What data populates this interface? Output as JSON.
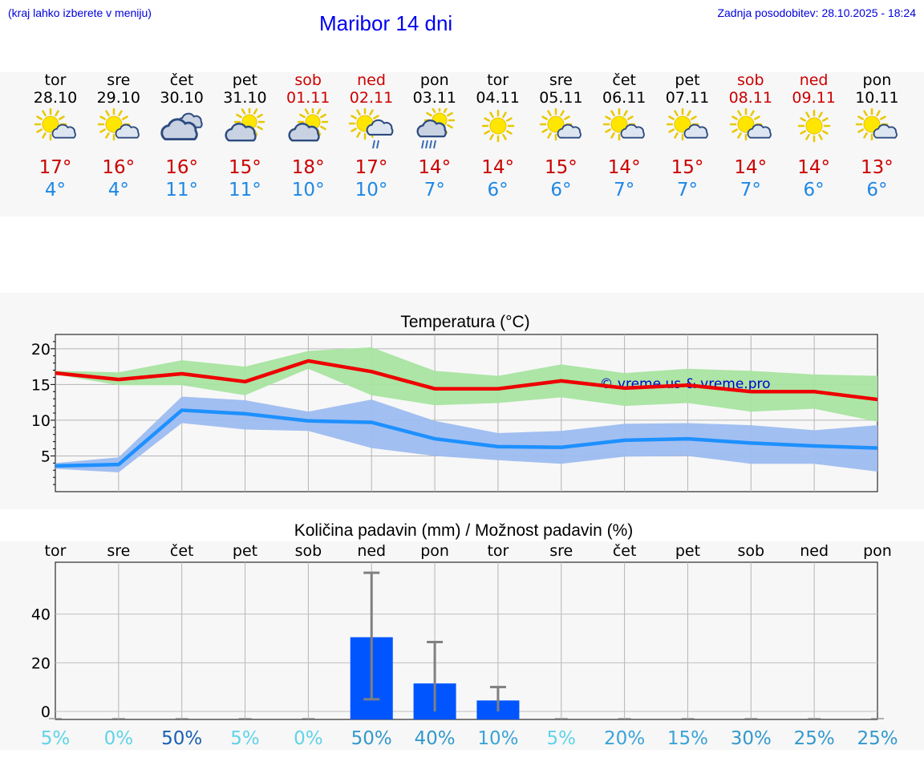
{
  "header": {
    "hint": "(kraj lahko izberete v meniju)",
    "title": "Maribor 14 dni",
    "updated": "Zadnja posodobitev: 28.10.2025 - 18:24"
  },
  "days": [
    {
      "name": "tor",
      "date": "28.10",
      "weekend": false,
      "icon": "sun-cloud-icon",
      "max": "17°",
      "min": "4°"
    },
    {
      "name": "sre",
      "date": "29.10",
      "weekend": false,
      "icon": "sun-cloud-icon",
      "max": "16°",
      "min": "4°"
    },
    {
      "name": "čet",
      "date": "30.10",
      "weekend": false,
      "icon": "cloudy-icon",
      "max": "16°",
      "min": "11°"
    },
    {
      "name": "pet",
      "date": "31.10",
      "weekend": false,
      "icon": "cloud-sun-icon",
      "max": "15°",
      "min": "11°"
    },
    {
      "name": "sob",
      "date": "01.11",
      "weekend": true,
      "icon": "cloud-sun-icon",
      "max": "18°",
      "min": "10°"
    },
    {
      "name": "ned",
      "date": "02.11",
      "weekend": true,
      "icon": "sun-rain-icon",
      "max": "17°",
      "min": "10°"
    },
    {
      "name": "pon",
      "date": "03.11",
      "weekend": false,
      "icon": "cloud-sun-rain-icon",
      "max": "14°",
      "min": "7°"
    },
    {
      "name": "tor",
      "date": "04.11",
      "weekend": false,
      "icon": "sun-icon",
      "max": "14°",
      "min": "6°"
    },
    {
      "name": "sre",
      "date": "05.11",
      "weekend": false,
      "icon": "sun-cloud-icon",
      "max": "15°",
      "min": "6°"
    },
    {
      "name": "čet",
      "date": "06.11",
      "weekend": false,
      "icon": "sun-cloud-icon",
      "max": "14°",
      "min": "7°"
    },
    {
      "name": "pet",
      "date": "07.11",
      "weekend": false,
      "icon": "sun-cloud-icon",
      "max": "15°",
      "min": "7°"
    },
    {
      "name": "sob",
      "date": "08.11",
      "weekend": true,
      "icon": "sun-cloud-icon",
      "max": "14°",
      "min": "7°"
    },
    {
      "name": "ned",
      "date": "09.11",
      "weekend": true,
      "icon": "sun-icon",
      "max": "14°",
      "min": "6°"
    },
    {
      "name": "pon",
      "date": "10.11",
      "weekend": false,
      "icon": "sun-cloud-icon",
      "max": "13°",
      "min": "6°"
    }
  ],
  "colors": {
    "max_line": "#ee0000",
    "max_band": "#a8e4a0",
    "min_line": "#1e90ff",
    "min_band": "#9dbcf0",
    "bar": "#0055ff",
    "whisker": "#808080",
    "watermark": "#0000cc"
  },
  "chart_data": [
    {
      "type": "line",
      "title": "Temperatura (°C)",
      "watermark": "© vreme.us & vreme.pro",
      "categories": [
        "tor",
        "sre",
        "čet",
        "pet",
        "sob",
        "ned",
        "pon",
        "tor",
        "sre",
        "čet",
        "pet",
        "sob",
        "ned",
        "pon"
      ],
      "ylim": [
        0,
        22
      ],
      "yticks": [
        5,
        10,
        15,
        20
      ],
      "grid": true,
      "series": [
        {
          "values": [
            16.6,
            15.7,
            16.5,
            15.4,
            18.3,
            16.8,
            14.4,
            14.4,
            15.5,
            14.5,
            14.9,
            14.0,
            14.0,
            12.9
          ],
          "band_low": [
            16.4,
            14.9,
            14.9,
            13.5,
            17.2,
            13.5,
            12.1,
            12.4,
            13.2,
            12.0,
            12.4,
            11.2,
            11.6,
            9.8
          ],
          "band_high": [
            16.9,
            16.7,
            18.4,
            17.5,
            19.7,
            20.2,
            16.9,
            16.2,
            17.8,
            16.6,
            17.2,
            16.9,
            16.4,
            16.2
          ]
        },
        {
          "values": [
            3.6,
            3.8,
            11.4,
            10.9,
            9.9,
            9.7,
            7.4,
            6.3,
            6.2,
            7.2,
            7.4,
            6.8,
            6.4,
            6.1
          ],
          "band_low": [
            3.2,
            2.7,
            9.6,
            8.7,
            8.5,
            6.1,
            5.0,
            4.4,
            3.9,
            4.9,
            5.0,
            3.9,
            3.9,
            2.8
          ],
          "band_high": [
            4.0,
            4.8,
            13.3,
            12.8,
            11.2,
            12.9,
            9.9,
            8.2,
            8.5,
            9.5,
            9.6,
            9.3,
            8.6,
            9.3
          ]
        }
      ]
    },
    {
      "type": "bar",
      "title": "Količina padavin (mm) / Možnost padavin (%)",
      "categories": [
        "tor",
        "sre",
        "čet",
        "pet",
        "sob",
        "ned",
        "pon",
        "tor",
        "sre",
        "čet",
        "pet",
        "sob",
        "ned",
        "pon"
      ],
      "values": [
        0,
        0,
        0,
        0,
        0,
        30.5,
        11.5,
        4.5,
        0,
        0,
        0,
        0,
        0,
        0
      ],
      "err_low": [
        0,
        0,
        0,
        0,
        0,
        5,
        0,
        0,
        0,
        0,
        0,
        0,
        0,
        0
      ],
      "err_high": [
        0,
        0,
        0,
        0,
        0,
        57,
        28.5,
        10,
        0,
        0,
        0,
        0,
        0,
        0
      ],
      "probability": [
        "5%",
        "0%",
        "50%",
        "5%",
        "0%",
        "50%",
        "40%",
        "10%",
        "5%",
        "20%",
        "15%",
        "30%",
        "25%",
        "25%"
      ],
      "probability_colors": [
        "#5fd3e8",
        "#5fd3e8",
        "#1a5fb4",
        "#5fd3e8",
        "#5fd3e8",
        "#3399cc",
        "#3399cc",
        "#3aa3d8",
        "#5fd3e8",
        "#3aa3d8",
        "#3aa3d8",
        "#3399cc",
        "#3399cc",
        "#3399cc"
      ],
      "ylim": [
        0,
        60
      ],
      "yticks": [
        0,
        20,
        40
      ],
      "grid": true
    }
  ]
}
